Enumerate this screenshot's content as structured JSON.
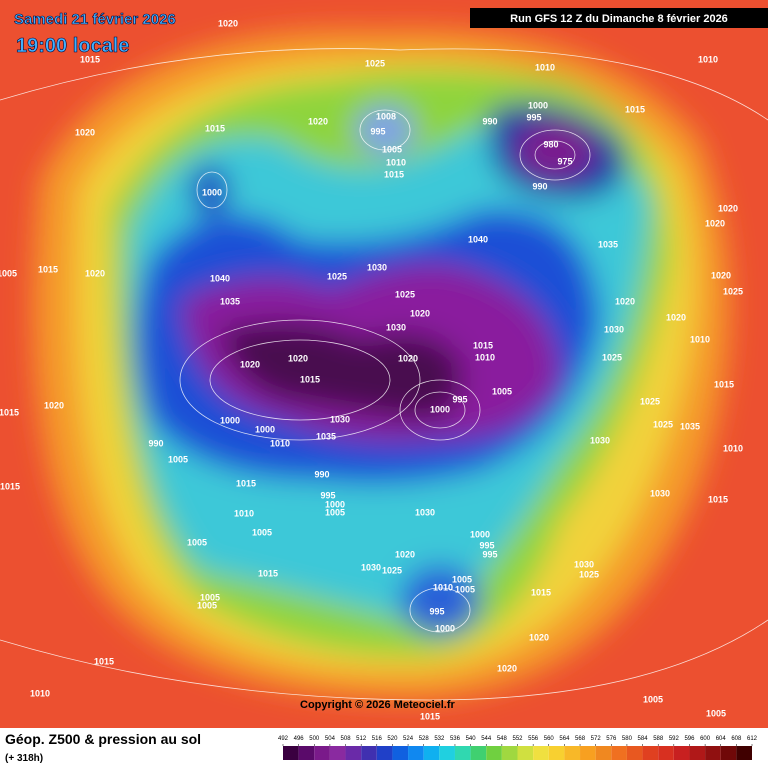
{
  "header": {
    "title": "Samedi 21 février 2026",
    "time": "19:00 locale",
    "run": "Run GFS 12 Z du Dimanche 8 février 2026"
  },
  "footer": {
    "title": "Géop. Z500 & pression au sol",
    "lead": "(+ 318h)",
    "copyright": "Copyright © 2026 Meteociel.fr"
  },
  "colorbar": {
    "ticks": [
      492,
      496,
      500,
      504,
      508,
      512,
      516,
      520,
      524,
      528,
      532,
      536,
      540,
      544,
      548,
      552,
      556,
      560,
      564,
      568,
      572,
      576,
      580,
      584,
      588,
      592,
      596,
      600,
      604,
      608,
      612
    ]
  },
  "isobar_labels": [
    1020,
    1015,
    1025,
    1010,
    1010,
    1020,
    1015,
    1020,
    1008,
    995,
    1005,
    1010,
    1015,
    1000,
    995,
    990,
    980,
    975,
    990,
    1015,
    1000,
    1020,
    1020,
    1035,
    1040,
    1005,
    1015,
    1020,
    1040,
    1025,
    1030,
    1025,
    1020,
    1025,
    1020,
    1020,
    1030,
    1035,
    1020,
    1030,
    1015,
    1010,
    1020,
    1020,
    1020,
    1025,
    1010,
    1015,
    1015,
    1005,
    995,
    1000,
    1025,
    1035,
    1025,
    1030,
    1010,
    1000,
    1000,
    1030,
    990,
    1010,
    1035,
    1005,
    1015,
    1020,
    990,
    995,
    1000,
    1005,
    1015,
    1010,
    1015,
    1030,
    1015,
    1030,
    1005,
    1005,
    1000,
    995,
    995,
    1020,
    1030,
    1025,
    1005,
    1010,
    1005,
    1030,
    1025,
    1015,
    1015,
    1005,
    1005,
    995,
    1000,
    1020,
    1020,
    1015,
    1010,
    1005,
    1005,
    1015
  ]
}
